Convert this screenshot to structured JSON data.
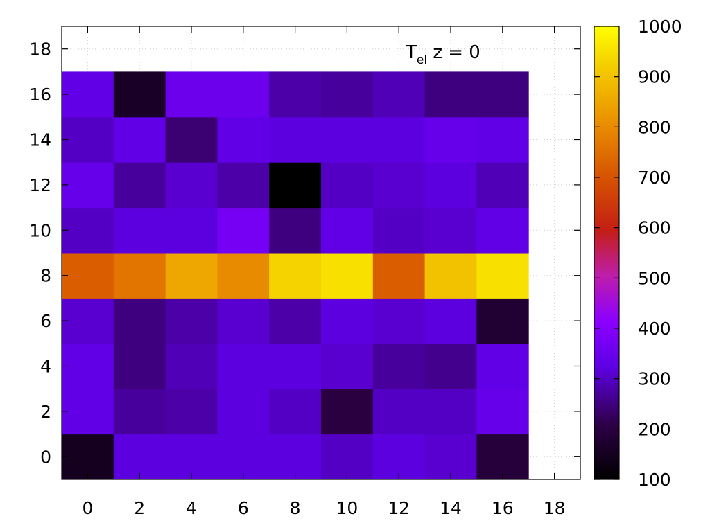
{
  "chart_data": {
    "type": "heatmap",
    "title": {
      "symbol": "T",
      "subscript": "el",
      "rest": " z = 0"
    },
    "xlabel": "",
    "ylabel": "",
    "x_range": [
      -1,
      19
    ],
    "y_range": [
      -1,
      19
    ],
    "x_ticks": [
      "0",
      "2",
      "4",
      "6",
      "8",
      "10",
      "12",
      "14",
      "16",
      "18"
    ],
    "y_ticks": [
      "0",
      "2",
      "4",
      "6",
      "8",
      "10",
      "12",
      "14",
      "16",
      "18"
    ],
    "x_tick_values": [
      0,
      2,
      4,
      6,
      8,
      10,
      12,
      14,
      16,
      18
    ],
    "y_tick_values": [
      0,
      2,
      4,
      6,
      8,
      10,
      12,
      14,
      16,
      18
    ],
    "grid": true,
    "x_centers": [
      0,
      2,
      4,
      6,
      8,
      10,
      12,
      14,
      16
    ],
    "y_centers": [
      0,
      2,
      4,
      6,
      8,
      10,
      12,
      14,
      16
    ],
    "cell_size": 2,
    "values": [
      [
        150,
        320,
        320,
        320,
        320,
        300,
        320,
        310,
        190
      ],
      [
        330,
        270,
        280,
        320,
        300,
        200,
        300,
        300,
        340
      ],
      [
        330,
        250,
        290,
        320,
        320,
        310,
        270,
        260,
        330
      ],
      [
        310,
        250,
        280,
        310,
        280,
        320,
        310,
        320,
        180
      ],
      [
        720,
        760,
        850,
        800,
        930,
        950,
        720,
        900,
        950
      ],
      [
        300,
        320,
        320,
        370,
        250,
        330,
        300,
        310,
        330
      ],
      [
        340,
        270,
        310,
        280,
        100,
        300,
        310,
        320,
        290
      ],
      [
        300,
        330,
        240,
        330,
        320,
        320,
        320,
        340,
        330
      ],
      [
        330,
        160,
        350,
        350,
        280,
        270,
        290,
        250,
        250
      ]
    ],
    "colorbar": {
      "min": 100,
      "max": 1000,
      "ticks": [
        "100",
        "200",
        "300",
        "400",
        "500",
        "600",
        "700",
        "800",
        "900",
        "1000"
      ],
      "tick_values": [
        100,
        200,
        300,
        400,
        500,
        600,
        700,
        800,
        900,
        1000
      ],
      "palette": "black-purple-red-yellow"
    }
  }
}
